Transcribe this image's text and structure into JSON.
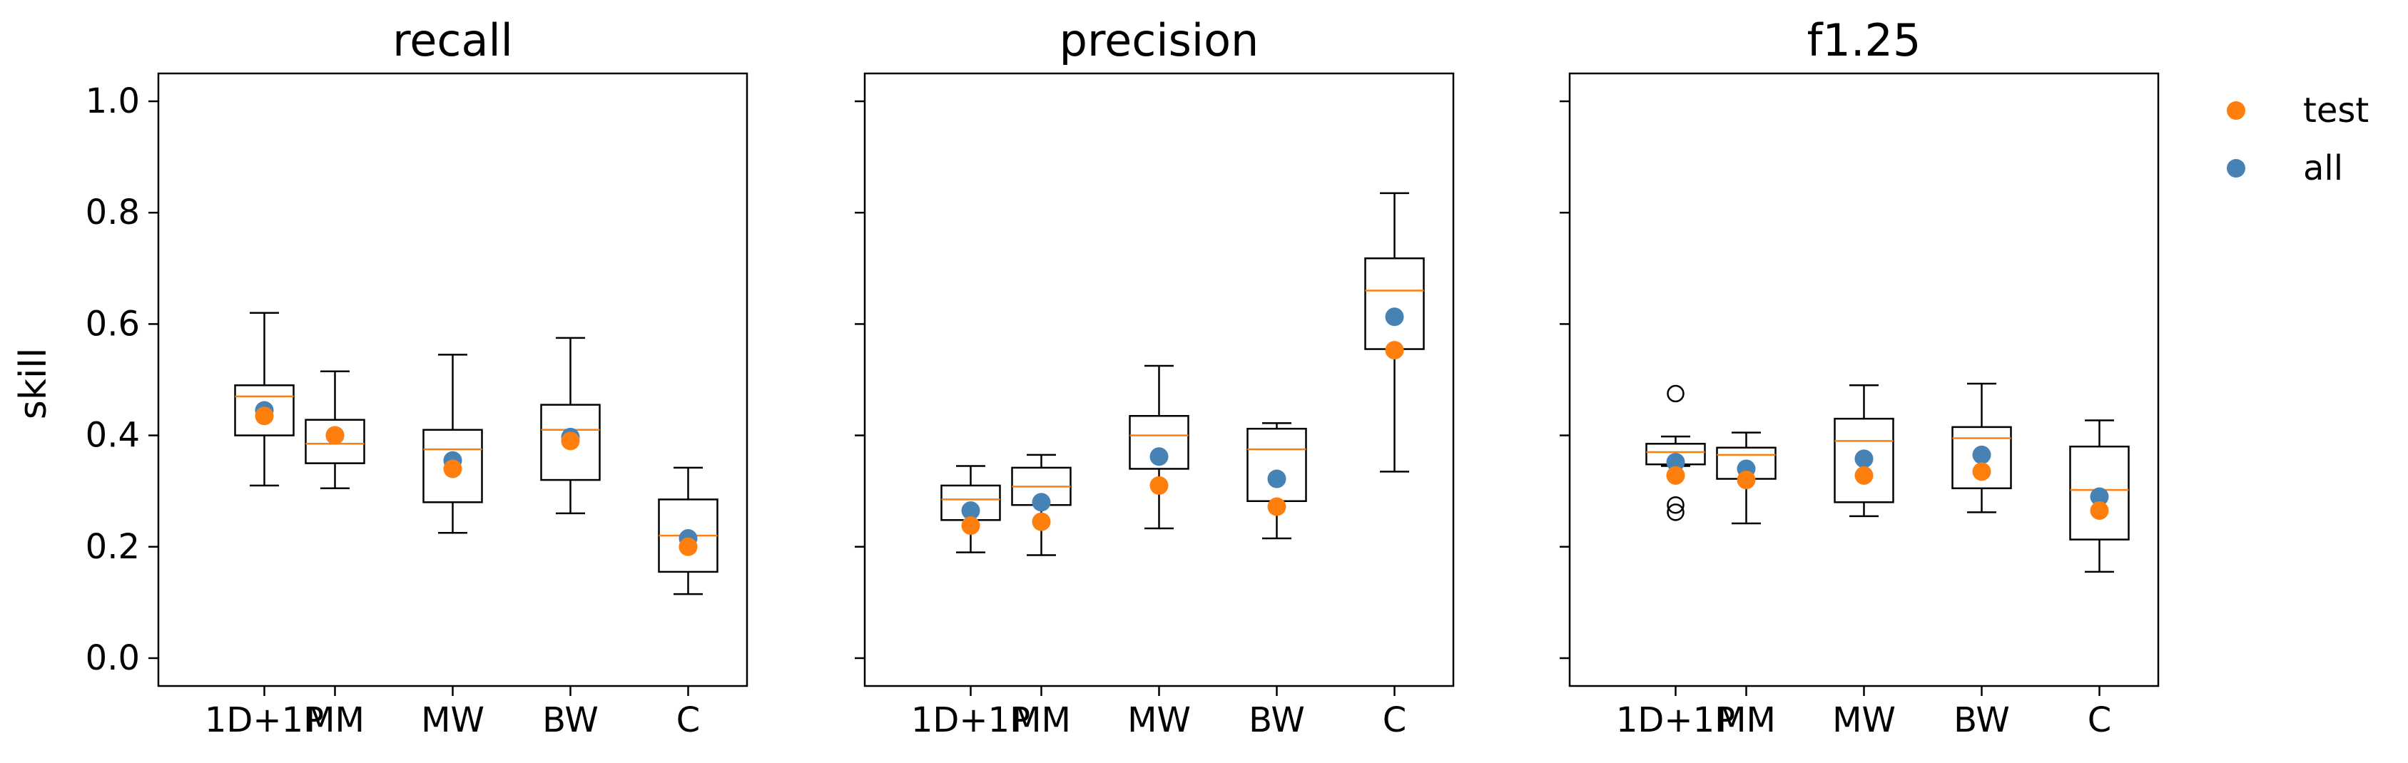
{
  "chart_data": {
    "type": "boxplot",
    "ylabel": "skill",
    "ylim": [
      -0.05,
      1.05
    ],
    "yticks": [
      0.0,
      0.2,
      0.4,
      0.6,
      0.8,
      1.0
    ],
    "ytick_labels": [
      "0.0",
      "0.2",
      "0.4",
      "0.6",
      "0.8",
      "1.0"
    ],
    "categories": [
      "1D+1P",
      "MM",
      "MW",
      "BW",
      "C"
    ],
    "category_positions": [
      0.4,
      1.0,
      2.0,
      3.0,
      4.0
    ],
    "xlim": [
      -0.5,
      4.5
    ],
    "legend": {
      "placement": "upper right, outside",
      "entries": [
        {
          "name": "test",
          "color": "#ff7f0e"
        },
        {
          "name": "all",
          "color": "#4682b4"
        }
      ]
    },
    "colors": {
      "box": "#000000",
      "median": "#ff7f0e",
      "test": "#ff7f0e",
      "all": "#4682b4"
    },
    "panels": [
      {
        "title": "recall",
        "boxes": [
          {
            "whislo": 0.31,
            "q1": 0.4,
            "med": 0.47,
            "q3": 0.49,
            "whishi": 0.62,
            "fliers": []
          },
          {
            "whislo": 0.305,
            "q1": 0.35,
            "med": 0.385,
            "q3": 0.428,
            "whishi": 0.515,
            "fliers": []
          },
          {
            "whislo": 0.225,
            "q1": 0.28,
            "med": 0.375,
            "q3": 0.41,
            "whishi": 0.545,
            "fliers": []
          },
          {
            "whislo": 0.26,
            "q1": 0.32,
            "med": 0.41,
            "q3": 0.455,
            "whishi": 0.575,
            "fliers": []
          },
          {
            "whislo": 0.115,
            "q1": 0.155,
            "med": 0.22,
            "q3": 0.285,
            "whishi": 0.342,
            "fliers": []
          }
        ],
        "test": [
          0.435,
          0.4,
          0.34,
          0.39,
          0.2
        ],
        "all": [
          0.445,
          0.4,
          0.355,
          0.397,
          0.215
        ]
      },
      {
        "title": "precision",
        "boxes": [
          {
            "whislo": 0.19,
            "q1": 0.248,
            "med": 0.285,
            "q3": 0.31,
            "whishi": 0.345,
            "fliers": []
          },
          {
            "whislo": 0.185,
            "q1": 0.275,
            "med": 0.308,
            "q3": 0.342,
            "whishi": 0.365,
            "fliers": []
          },
          {
            "whislo": 0.233,
            "q1": 0.34,
            "med": 0.4,
            "q3": 0.435,
            "whishi": 0.525,
            "fliers": []
          },
          {
            "whislo": 0.215,
            "q1": 0.282,
            "med": 0.375,
            "q3": 0.412,
            "whishi": 0.422,
            "fliers": []
          },
          {
            "whislo": 0.335,
            "q1": 0.555,
            "med": 0.66,
            "q3": 0.718,
            "whishi": 0.835,
            "fliers": []
          }
        ],
        "test": [
          0.238,
          0.245,
          0.31,
          0.272,
          0.553
        ],
        "all": [
          0.265,
          0.28,
          0.362,
          0.322,
          0.613
        ]
      },
      {
        "title": "f1.25",
        "boxes": [
          {
            "whislo": 0.345,
            "q1": 0.348,
            "med": 0.37,
            "q3": 0.385,
            "whishi": 0.398,
            "fliers": [
              0.475,
              0.275,
              0.262
            ]
          },
          {
            "whislo": 0.242,
            "q1": 0.322,
            "med": 0.365,
            "q3": 0.378,
            "whishi": 0.405,
            "fliers": []
          },
          {
            "whislo": 0.255,
            "q1": 0.28,
            "med": 0.39,
            "q3": 0.43,
            "whishi": 0.49,
            "fliers": []
          },
          {
            "whislo": 0.262,
            "q1": 0.305,
            "med": 0.395,
            "q3": 0.415,
            "whishi": 0.493,
            "fliers": []
          },
          {
            "whislo": 0.155,
            "q1": 0.213,
            "med": 0.302,
            "q3": 0.38,
            "whishi": 0.427,
            "fliers": []
          }
        ],
        "test": [
          0.328,
          0.32,
          0.328,
          0.335,
          0.265
        ],
        "all": [
          0.352,
          0.34,
          0.358,
          0.365,
          0.29
        ]
      }
    ]
  }
}
